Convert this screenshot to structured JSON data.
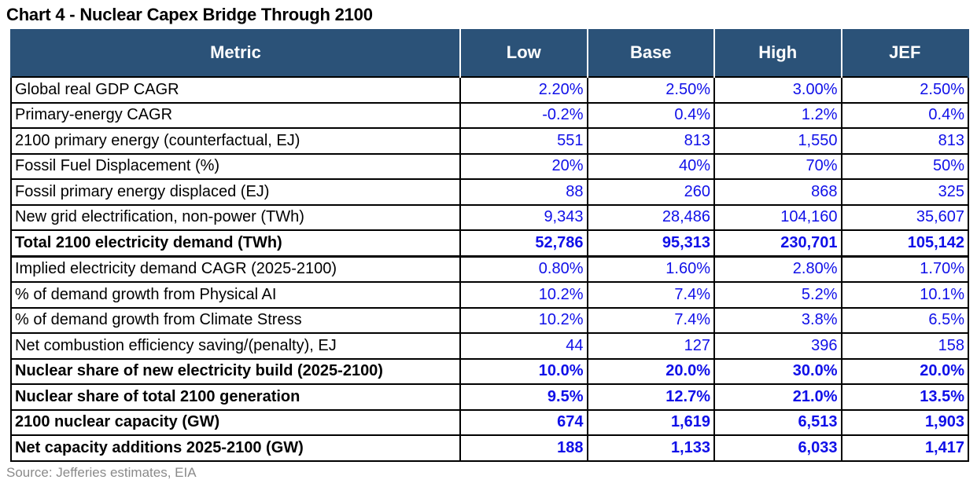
{
  "title": "Chart 4 - Nuclear Capex Bridge Through 2100",
  "headers": [
    "Metric",
    "Low",
    "Base",
    "High",
    "JEF"
  ],
  "rows": [
    {
      "metric": "Global real GDP CAGR",
      "values": [
        "2.20%",
        "2.50%",
        "3.00%",
        "2.50%"
      ],
      "bold": false
    },
    {
      "metric": "Primary-energy CAGR",
      "values": [
        "-0.2%",
        "0.4%",
        "1.2%",
        "0.4%"
      ],
      "bold": false
    },
    {
      "metric": "2100 primary energy (counterfactual, EJ)",
      "values": [
        "551",
        "813",
        "1,550",
        "813"
      ],
      "bold": false
    },
    {
      "metric": "Fossil Fuel Displacement (%)",
      "values": [
        "20%",
        "40%",
        "70%",
        "50%"
      ],
      "bold": false
    },
    {
      "metric": "Fossil primary energy displaced (EJ)",
      "values": [
        "88",
        "260",
        "868",
        "325"
      ],
      "bold": false
    },
    {
      "metric": "New grid electrification, non-power (TWh)",
      "values": [
        "9,343",
        "28,486",
        "104,160",
        "35,607"
      ],
      "bold": false
    },
    {
      "metric": "Total 2100 electricity demand (TWh)",
      "values": [
        "52,786",
        "95,313",
        "230,701",
        "105,142"
      ],
      "bold": true
    },
    {
      "metric": "Implied electricity demand CAGR (2025-2100)",
      "values": [
        "0.80%",
        "1.60%",
        "2.80%",
        "1.70%"
      ],
      "bold": false
    },
    {
      "metric": "% of demand growth from Physical AI",
      "values": [
        "10.2%",
        "7.4%",
        "5.2%",
        "10.1%"
      ],
      "bold": false
    },
    {
      "metric": "% of demand growth from Climate Stress",
      "values": [
        "10.2%",
        "7.4%",
        "3.8%",
        "6.5%"
      ],
      "bold": false
    },
    {
      "metric": "Net combustion efficiency saving/(penalty), EJ",
      "values": [
        "44",
        "127",
        "396",
        "158"
      ],
      "bold": false
    },
    {
      "metric": "Nuclear share of new electricity build (2025-2100)",
      "values": [
        "10.0%",
        "20.0%",
        "30.0%",
        "20.0%"
      ],
      "bold": true
    },
    {
      "metric": "Nuclear share of total 2100 generation",
      "values": [
        "9.5%",
        "12.7%",
        "21.0%",
        "13.5%"
      ],
      "bold": true
    },
    {
      "metric": "2100 nuclear capacity (GW)",
      "values": [
        "674",
        "1,619",
        "6,513",
        "1,903"
      ],
      "bold": true
    },
    {
      "metric": "Net capacity additions 2025-2100 (GW)",
      "values": [
        "188",
        "1,133",
        "6,033",
        "1,417"
      ],
      "bold": true
    }
  ],
  "source": "Source: Jefferies estimates, EIA",
  "colors": {
    "header_bg": "#2b5278",
    "header_text": "#ffffff",
    "value_text": "#1010e8",
    "label_text": "#000000",
    "source_text": "#8a8a8a"
  }
}
